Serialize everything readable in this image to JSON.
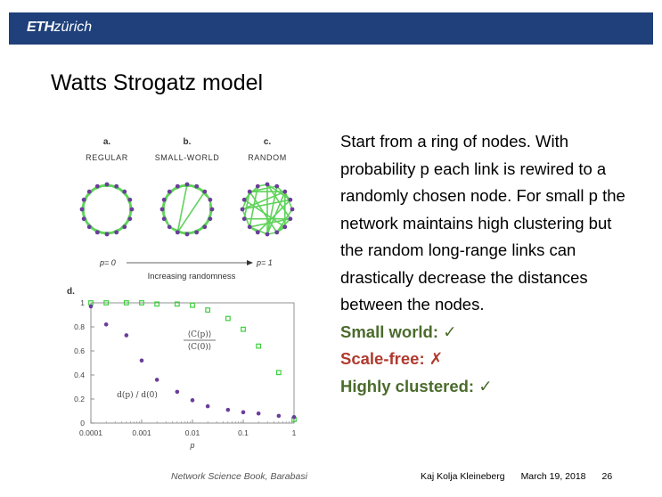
{
  "header": {
    "logo_bold": "ETH",
    "logo_rest": "zürich"
  },
  "slide": {
    "title": "Watts Strogatz model",
    "paragraph": "Start from a ring of nodes. With probability p each link is rewired to a randomly chosen node. For small p the network maintains high clustering but the random long-range links can drastically decrease the distances between the nodes.",
    "features": [
      {
        "label": "Small world:",
        "mark": "✓",
        "color": "#4b6b2c"
      },
      {
        "label": "Scale-free:",
        "mark": "✗",
        "color": "#b03a2e"
      },
      {
        "label": "Highly clustered:",
        "mark": "✓",
        "color": "#4b6b2c"
      }
    ]
  },
  "figure": {
    "panels": [
      {
        "letter": "a.",
        "name": "REGULAR"
      },
      {
        "letter": "b.",
        "name": "SMALL-WORLD"
      },
      {
        "letter": "c.",
        "name": "RANDOM"
      }
    ],
    "p_left": "p= 0",
    "p_right": "p= 1",
    "arrow_label": "Increasing randomness",
    "plot_letter": "d.",
    "node_color": "#6a3d9a",
    "edge_color": "#5fd35a"
  },
  "chart_data": {
    "type": "scatter",
    "xscale": "log",
    "xlim": [
      0.0001,
      1
    ],
    "ylim": [
      0,
      1
    ],
    "xticks": [
      "0.0001",
      "0.001",
      "0.01",
      "0.1",
      "1"
    ],
    "yticks": [
      "0",
      "0.2",
      "0.4",
      "0.6",
      "0.8",
      "1"
    ],
    "xlabel": "p",
    "series": [
      {
        "name": "⟨C(p)⟩ / ⟨C(0)⟩",
        "marker": "square-open",
        "color": "#3ccf3c",
        "x": [
          0.0001,
          0.0002,
          0.0005,
          0.001,
          0.002,
          0.005,
          0.01,
          0.02,
          0.05,
          0.1,
          0.2,
          0.5,
          1
        ],
        "y": [
          1.0,
          1.0,
          1.0,
          1.0,
          0.99,
          0.99,
          0.98,
          0.94,
          0.87,
          0.78,
          0.64,
          0.42,
          0.03
        ]
      },
      {
        "name": "d(p) / d(0)",
        "marker": "dot",
        "color": "#6a3d9a",
        "x": [
          0.0001,
          0.0002,
          0.0005,
          0.001,
          0.002,
          0.005,
          0.01,
          0.02,
          0.05,
          0.1,
          0.2,
          0.5,
          1
        ],
        "y": [
          0.97,
          0.82,
          0.73,
          0.52,
          0.36,
          0.26,
          0.19,
          0.14,
          0.11,
          0.09,
          0.08,
          0.06,
          0.05
        ]
      }
    ]
  },
  "footer": {
    "source": "Network Science Book, Barabasi",
    "author": "Kaj Kolja Kleineberg",
    "date": "March 19, 2018",
    "page": "26"
  }
}
